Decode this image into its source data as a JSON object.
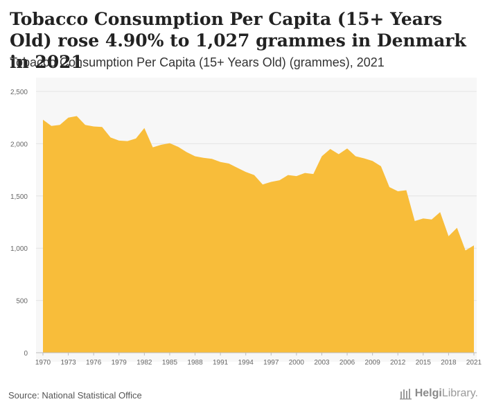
{
  "header": {
    "title": "Tobacco Consumption Per Capita (15+ Years Old) rose 4.90% to 1,027 grammes in Denmark in 2021",
    "subtitle": "Tobacco Consumption Per Capita (15+ Years Old) (grammes), 2021"
  },
  "footer": {
    "source": "Source: National Statistical Office",
    "brand_bold": "Helgi",
    "brand_rest": "Library."
  },
  "colors": {
    "area_fill": "#F8BD3A",
    "plot_bg": "#F7F7F7",
    "grid": "#E4E4E4",
    "axis_text": "#666666"
  },
  "chart_data": {
    "type": "area",
    "title": "Tobacco Consumption Per Capita (15+ Years Old) (grammes), 2021",
    "xlabel": "",
    "ylabel": "",
    "ylim": [
      0,
      2500
    ],
    "yticks": [
      0,
      500,
      1000,
      1500,
      2000,
      2500
    ],
    "ytick_labels": [
      "0",
      "500",
      "1,000",
      "1,500",
      "2,000",
      "2,500"
    ],
    "xticks": [
      1970,
      1973,
      1976,
      1979,
      1982,
      1985,
      1988,
      1991,
      1994,
      1997,
      2000,
      2003,
      2006,
      2009,
      2012,
      2015,
      2018,
      2021
    ],
    "grid": "horizontal",
    "x": [
      1970,
      1971,
      1972,
      1973,
      1974,
      1975,
      1976,
      1977,
      1978,
      1979,
      1980,
      1981,
      1982,
      1983,
      1984,
      1985,
      1986,
      1987,
      1988,
      1989,
      1990,
      1991,
      1992,
      1993,
      1994,
      1995,
      1996,
      1997,
      1998,
      1999,
      2000,
      2001,
      2002,
      2003,
      2004,
      2005,
      2006,
      2007,
      2008,
      2009,
      2010,
      2011,
      2012,
      2013,
      2014,
      2015,
      2016,
      2017,
      2018,
      2019,
      2020,
      2021
    ],
    "values": [
      2230,
      2170,
      2180,
      2250,
      2265,
      2180,
      2165,
      2160,
      2060,
      2030,
      2025,
      2050,
      2150,
      1965,
      1990,
      2005,
      1970,
      1920,
      1880,
      1865,
      1855,
      1825,
      1810,
      1770,
      1730,
      1700,
      1610,
      1635,
      1650,
      1700,
      1690,
      1720,
      1710,
      1880,
      1950,
      1900,
      1955,
      1880,
      1860,
      1835,
      1785,
      1585,
      1545,
      1555,
      1260,
      1285,
      1275,
      1345,
      1115,
      1195,
      979,
      1027
    ]
  }
}
